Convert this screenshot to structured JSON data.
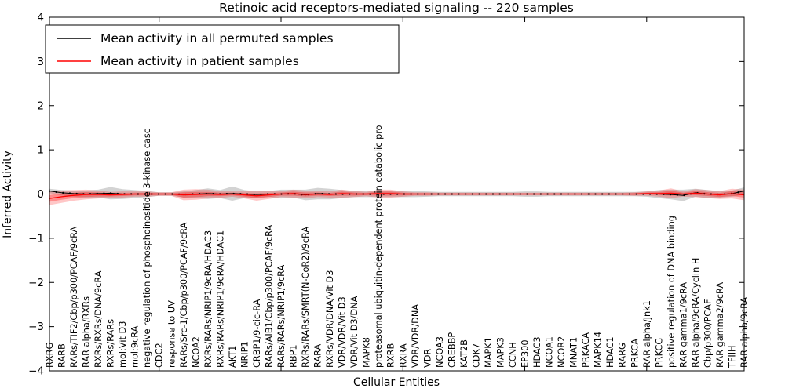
{
  "figure_title": "Retinoic acid receptors-mediated signaling -- 220 samples",
  "chart_data": {
    "type": "line",
    "title": "Retinoic acid receptors-mediated signaling -- 220 samples",
    "xlabel": "Cellular Entities",
    "ylabel": "Inferred Activity",
    "ylim": [
      -4,
      4
    ],
    "yticks": [
      -4,
      -3,
      -2,
      -1,
      0,
      1,
      2,
      3,
      4
    ],
    "grid": false,
    "legend_position": "upper left",
    "sample_count_in_title": "220 samples",
    "categories": [
      "RXRG",
      "RARB",
      "RARs/TIF2/Cbp/p300/PCAF/9cRA",
      "RAR alpha/RXRs",
      "RXRs/RXRs/DNA/9cRA",
      "RXRs/RARs",
      "mol:Vit D3",
      "mol:9cRA",
      "negative regulation of phosphoinositide 3-kinase casc",
      "CDC2",
      "response to UV",
      "RARs/Src-1/Cbp/p300/PCAF/9cRA",
      "NCOA2",
      "RXRs/RARs/NRIP1/9cRA/HDAC3",
      "RXRs/RARs/NRIP1/9cRA/HDAC1",
      "AKT1",
      "NRIP1",
      "CRBP1/9-cic-RA",
      "RARs/AIB1/Cbp/p300/PCAF/9cRA",
      "RARs/RARs/NRIP1/9cRA",
      "RBP1",
      "RXRs/RARs/SMRT(N-CoR2)/9cRA",
      "RARA",
      "RXRs/VDR/DNA/Vit D3",
      "VDR/VDR/Vit D3",
      "VDR/Vit D3/DNA",
      "MAPK8",
      "proteasomal ubiquitin-dependent protein catabolic pro",
      "RXRB",
      "RXRA",
      "VDR/VDR/DNA",
      "VDR",
      "NCOA3",
      "CREBBP",
      "KAT2B",
      "CDK7",
      "MAPK1",
      "MAPK3",
      "CCNH",
      "EP300",
      "HDAC3",
      "NCOA1",
      "NCOR2",
      "MNAT1",
      "PRKACA",
      "MAPK14",
      "HDAC1",
      "RARG",
      "PRKCA",
      "RAR alpha/Jnk1",
      "PRKCG",
      "positive regulation of DNA binding",
      "RAR gamma1/9cRA",
      "RAR alpha/9cRA/Cyclin H",
      "Cbp/p300/PCAF",
      "RAR gamma2/9cRA",
      "TFIIH",
      "RAR alpha/9cRA"
    ],
    "series": [
      {
        "name": "Mean activity in all permuted samples",
        "color": "#000000",
        "band_color": "rgba(128,128,128,0.35)",
        "values": [
          0.07,
          0.03,
          0.01,
          0,
          0.01,
          0.02,
          0,
          0,
          0,
          0,
          0,
          -0.01,
          0,
          0.01,
          0,
          0.01,
          0,
          -0.01,
          0,
          0,
          0.01,
          -0.02,
          0.01,
          0,
          0,
          0,
          0,
          0,
          0,
          0,
          0,
          0,
          0,
          0,
          0,
          0,
          0,
          0,
          0,
          0,
          0,
          0,
          0,
          0,
          0,
          0,
          0,
          0,
          0,
          0,
          0,
          -0.01,
          -0.03,
          0.03,
          0,
          -0.01,
          0.01,
          0.07
        ],
        "band_halfwidth": [
          0.05,
          0.06,
          0.07,
          0.08,
          0.09,
          0.14,
          0.11,
          0.09,
          0.07,
          0.04,
          0.04,
          0.07,
          0.09,
          0.12,
          0.09,
          0.16,
          0.09,
          0.07,
          0.07,
          0.1,
          0.09,
          0.12,
          0.13,
          0.12,
          0.09,
          0.07,
          0.07,
          0.07,
          0.07,
          0.07,
          0.07,
          0.06,
          0.05,
          0.05,
          0.05,
          0.05,
          0.05,
          0.05,
          0.05,
          0.06,
          0.06,
          0.05,
          0.05,
          0.05,
          0.05,
          0.05,
          0.05,
          0.05,
          0.05,
          0.06,
          0.09,
          0.11,
          0.13,
          0.09,
          0.09,
          0.07,
          0.07,
          0.08
        ]
      },
      {
        "name": "Mean activity in patient samples",
        "color": "#ff0000",
        "band_color": "rgba(255,0,0,0.22)",
        "values": [
          -0.1,
          -0.06,
          -0.03,
          -0.01,
          -0.01,
          -0.02,
          -0.01,
          0,
          0,
          0,
          0,
          -0.02,
          -0.01,
          0,
          -0.01,
          0,
          -0.02,
          -0.04,
          -0.02,
          0,
          0.01,
          -0.01,
          0,
          -0.01,
          0.01,
          0,
          0,
          0.01,
          0.01,
          0,
          0,
          0,
          0,
          0,
          0,
          0,
          0,
          0,
          0,
          0,
          0,
          0,
          0,
          0,
          0,
          0,
          0,
          0,
          0,
          0.01,
          0.01,
          0.02,
          0,
          0.02,
          0,
          -0.02,
          0.01,
          -0.02
        ],
        "band_halfwidth": [
          0.15,
          0.14,
          0.12,
          0.11,
          0.09,
          0.07,
          0.07,
          0.06,
          0.06,
          0.04,
          0.04,
          0.12,
          0.12,
          0.1,
          0.08,
          0.06,
          0.08,
          0.11,
          0.09,
          0.07,
          0.09,
          0.09,
          0.07,
          0.07,
          0.09,
          0.07,
          0.05,
          0.09,
          0.09,
          0.06,
          0.04,
          0.04,
          0.03,
          0.03,
          0.03,
          0.03,
          0.03,
          0.03,
          0.03,
          0.03,
          0.03,
          0.03,
          0.03,
          0.03,
          0.03,
          0.03,
          0.03,
          0.03,
          0.04,
          0.05,
          0.07,
          0.11,
          0.06,
          0.09,
          0.09,
          0.09,
          0.11,
          0.12
        ]
      }
    ]
  }
}
